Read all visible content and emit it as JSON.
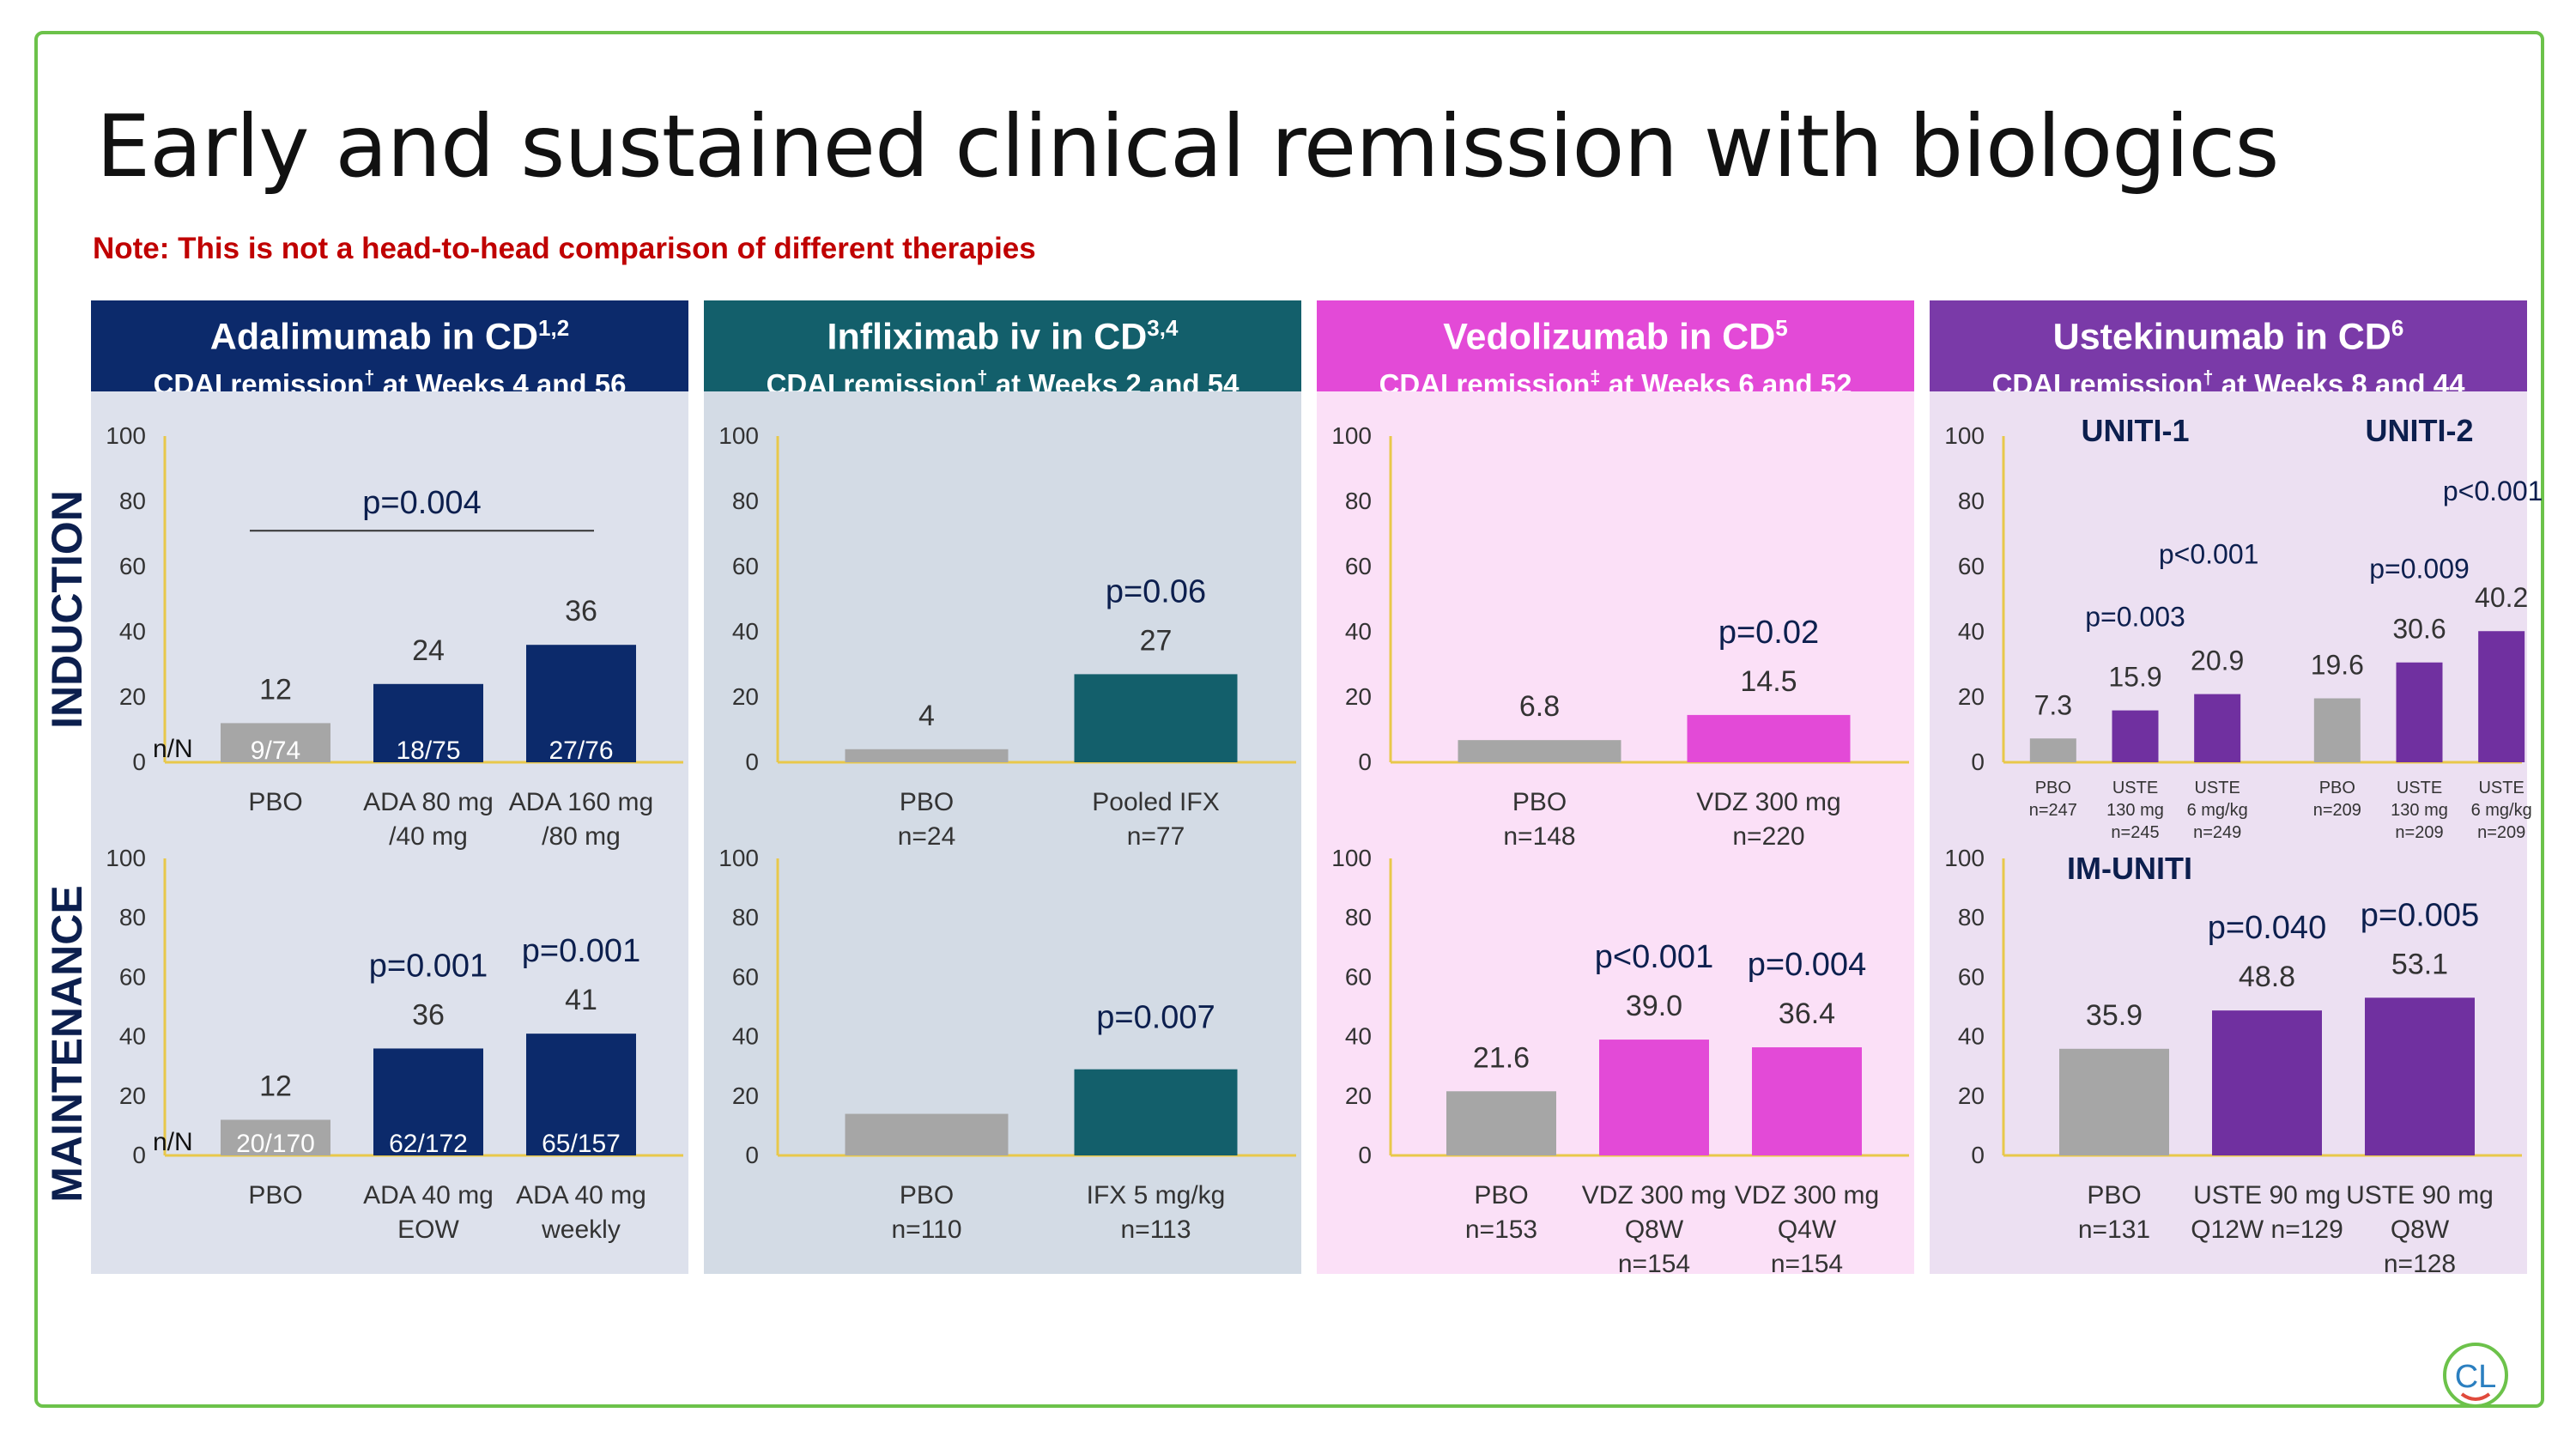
{
  "title": "Early and sustained clinical remission with biologics",
  "note": "Note: This is not a head-to-head comparison of different therapies",
  "side_labels": {
    "induction": "INDUCTION",
    "maintenance": "MAINTENANCE"
  },
  "panels": [
    {
      "name": "Adalimumab in CD",
      "sup": "1,2",
      "subtitle_pre": "CDAI remission",
      "subtitle_mark": "†",
      "subtitle_post": " at Weeks 4 and 56",
      "header_color": "#0c2a6b",
      "body_color": "#dde1ec"
    },
    {
      "name": "Infliximab iv in CD",
      "sup": "3,4",
      "subtitle_pre": "CDAI remission",
      "subtitle_mark": "†",
      "subtitle_post": " at Weeks 2 and 54",
      "header_color": "#135f6b",
      "body_color": "#d3dbe5"
    },
    {
      "name": "Vedolizumab in CD",
      "sup": "5",
      "subtitle_pre": "CDAI remission",
      "subtitle_mark": "‡",
      "subtitle_post": " at Weeks 6 and 52",
      "header_color": "#e34ad7",
      "body_color": "#fbe0f7"
    },
    {
      "name": "Ustekinumab in CD",
      "sup": "6",
      "subtitle_pre": "CDAI remission",
      "subtitle_mark": "†",
      "subtitle_post": " at Weeks 8 and 44",
      "header_color": "#7a3aa8",
      "body_color": "#ece0f2"
    }
  ],
  "colors": {
    "grey": "#a6a6a6",
    "ada": "#0c2a6b",
    "ifx": "#135f6b",
    "vdz": "#e34ad7",
    "uste": "#7030a0",
    "axis": "#e8c84a",
    "pval": "#0c1f4e"
  },
  "chart_data": [
    {
      "panel": "Adalimumab in CD",
      "phase": "Induction",
      "type": "bar",
      "ylim": [
        0,
        100
      ],
      "yticks": [
        "0",
        "20",
        "40",
        "60",
        "80",
        "100"
      ],
      "categories": [
        [
          "PBO"
        ],
        [
          "ADA 80 mg",
          "/40 mg"
        ],
        [
          "ADA 160 mg",
          "/80 mg"
        ]
      ],
      "values": [
        12,
        24,
        36
      ],
      "value_labels": [
        "12",
        "24",
        "36"
      ],
      "counts": [
        "9/74",
        "18/75",
        "27/76"
      ],
      "count_prefix": "n/N",
      "bar_colors": [
        "grey",
        "ada",
        "ada"
      ],
      "pvalues": [
        {
          "text": "p=0.004",
          "bracket": [
            0,
            2
          ]
        }
      ]
    },
    {
      "panel": "Adalimumab in CD",
      "phase": "Maintenance",
      "type": "bar",
      "ylim": [
        0,
        100
      ],
      "yticks": [
        "0",
        "20",
        "40",
        "60",
        "80",
        "100"
      ],
      "categories": [
        [
          "PBO"
        ],
        [
          "ADA 40 mg",
          "EOW"
        ],
        [
          "ADA 40 mg",
          "weekly"
        ]
      ],
      "values": [
        12,
        36,
        41
      ],
      "value_labels": [
        "12",
        "36",
        "41"
      ],
      "counts": [
        "20/170",
        "62/172",
        "65/157"
      ],
      "count_prefix": "n/N",
      "bar_colors": [
        "grey",
        "ada",
        "ada"
      ],
      "pvalues": [
        {
          "text": "p=0.001",
          "bar": 1
        },
        {
          "text": "p=0.001",
          "bar": 2
        }
      ]
    },
    {
      "panel": "Infliximab iv in CD",
      "phase": "Induction",
      "type": "bar",
      "ylim": [
        0,
        100
      ],
      "yticks": [
        "0",
        "20",
        "40",
        "60",
        "80",
        "100"
      ],
      "categories": [
        [
          "PBO",
          "n=24"
        ],
        [
          "Pooled IFX",
          "n=77"
        ]
      ],
      "values": [
        4,
        27
      ],
      "value_labels": [
        "4",
        "27"
      ],
      "bar_colors": [
        "grey",
        "ifx"
      ],
      "pvalues": [
        {
          "text": "p=0.06",
          "bar": 1
        }
      ]
    },
    {
      "panel": "Infliximab iv in CD",
      "phase": "Maintenance",
      "type": "bar",
      "ylim": [
        0,
        100
      ],
      "yticks": [
        "0",
        "20",
        "40",
        "60",
        "80",
        "100"
      ],
      "categories": [
        [
          "PBO",
          "n=110"
        ],
        [
          "IFX 5 mg/kg",
          "n=113"
        ]
      ],
      "values": [
        14,
        29
      ],
      "value_labels": [
        "",
        ""
      ],
      "bar_colors": [
        "grey",
        "ifx"
      ],
      "pvalues": [
        {
          "text": "p=0.007",
          "bar": 1
        }
      ]
    },
    {
      "panel": "Vedolizumab in CD",
      "phase": "Induction",
      "type": "bar",
      "ylim": [
        0,
        100
      ],
      "yticks": [
        "0",
        "20",
        "40",
        "60",
        "80",
        "100"
      ],
      "categories": [
        [
          "PBO",
          "n=148"
        ],
        [
          "VDZ 300 mg",
          "n=220"
        ]
      ],
      "values": [
        6.8,
        14.5
      ],
      "value_labels": [
        "6.8",
        "14.5"
      ],
      "bar_colors": [
        "grey",
        "vdz"
      ],
      "pvalues": [
        {
          "text": "p=0.02",
          "bar": 1
        }
      ]
    },
    {
      "panel": "Vedolizumab in CD",
      "phase": "Maintenance",
      "type": "bar",
      "ylim": [
        0,
        100
      ],
      "yticks": [
        "0",
        "20",
        "40",
        "60",
        "80",
        "100"
      ],
      "categories": [
        [
          "PBO",
          "n=153"
        ],
        [
          "VDZ 300 mg",
          "Q8W",
          "n=154"
        ],
        [
          "VDZ 300 mg",
          "Q4W",
          "n=154"
        ]
      ],
      "values": [
        21.6,
        39.0,
        36.4
      ],
      "value_labels": [
        "21.6",
        "39.0",
        "36.4"
      ],
      "bar_colors": [
        "grey",
        "vdz",
        "vdz"
      ],
      "pvalues": [
        {
          "text": "p<0.001",
          "bar": 1
        },
        {
          "text": "p=0.004",
          "bar": 2
        }
      ]
    },
    {
      "panel": "Ustekinumab in CD",
      "phase": "Induction",
      "type": "bar",
      "ylim": [
        0,
        100
      ],
      "yticks": [
        "0",
        "20",
        "40",
        "60",
        "80",
        "100"
      ],
      "groups": [
        "UNITI-1",
        "UNITI-2"
      ],
      "categories": [
        [
          "PBO",
          "n=247"
        ],
        [
          "USTE",
          "130 mg",
          "n=245"
        ],
        [
          "USTE",
          "6 mg/kg",
          "n=249"
        ],
        [
          "PBO",
          "n=209"
        ],
        [
          "USTE",
          "130 mg",
          "n=209"
        ],
        [
          "USTE",
          "6 mg/kg",
          "n=209"
        ]
      ],
      "values": [
        7.3,
        15.9,
        20.9,
        19.6,
        30.6,
        40.2
      ],
      "value_labels": [
        "7.3",
        "15.9",
        "20.9",
        "19.6",
        "30.6",
        "40.2"
      ],
      "bar_colors": [
        "grey",
        "uste",
        "uste",
        "grey",
        "uste",
        "uste"
      ],
      "pvalues": [
        {
          "text": "p=0.003",
          "bar": 1
        },
        {
          "text": "p<0.001",
          "bar": 2
        },
        {
          "text": "p=0.009",
          "bar": 4
        },
        {
          "text": "p<0.001",
          "bar": 5
        }
      ]
    },
    {
      "panel": "Ustekinumab in CD",
      "phase": "Maintenance",
      "type": "bar",
      "ylim": [
        0,
        100
      ],
      "yticks": [
        "0",
        "20",
        "40",
        "60",
        "80",
        "100"
      ],
      "groups": [
        "IM-UNITI"
      ],
      "categories": [
        [
          "PBO",
          "n=131"
        ],
        [
          "USTE 90 mg",
          "Q12W n=129"
        ],
        [
          "USTE 90 mg",
          "Q8W",
          "n=128"
        ]
      ],
      "values": [
        35.9,
        48.8,
        53.1
      ],
      "value_labels": [
        "35.9",
        "48.8",
        "53.1"
      ],
      "bar_colors": [
        "grey",
        "uste",
        "uste"
      ],
      "pvalues": [
        {
          "text": "p=0.040",
          "bar": 1
        },
        {
          "text": "p=0.005",
          "bar": 2
        }
      ]
    }
  ]
}
